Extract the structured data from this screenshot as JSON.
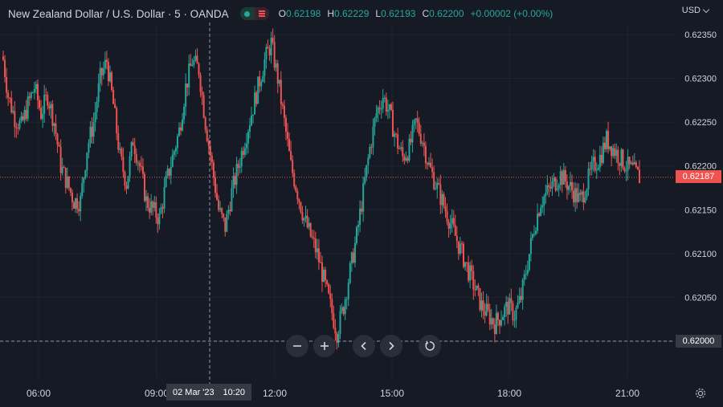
{
  "header": {
    "title": "New Zealand Dollar / U.S. Dollar · 5 · OANDA",
    "ohlc": [
      {
        "key": "O",
        "value": "0.62198"
      },
      {
        "key": "H",
        "value": "0.62229"
      },
      {
        "key": "L",
        "value": "0.62193"
      },
      {
        "key": "C",
        "value": "0.62200"
      }
    ],
    "change": "+0.00002 (+0.00%)"
  },
  "currency_label": "USD",
  "last_price_label": "0.62187",
  "crosshair_price_label": "0.62000",
  "crosshair_time": {
    "date": "02 Mar '23",
    "time": "10:20"
  },
  "colors": {
    "background": "#161a25",
    "up": "#26a69a",
    "down": "#ef5350",
    "grid": "#1f2331",
    "text": "#d1d4dc"
  },
  "icons": [
    "zoom-out-icon",
    "zoom-in-icon",
    "scroll-left-icon",
    "scroll-right-icon",
    "reset-icon",
    "settings-gear-icon",
    "chevron-down-icon"
  ],
  "chart_data": {
    "type": "candlestick",
    "symbol": "NZD/USD",
    "interval": "5",
    "ylim": [
      0.61975,
      0.62365
    ],
    "y_ticks": [
      "0.62350",
      "0.62300",
      "0.62250",
      "0.62200",
      "0.62150",
      "0.62100",
      "0.62050",
      "0.62000"
    ],
    "x_ticks": [
      "06:00",
      "09:00",
      "12:00",
      "15:00",
      "18:00",
      "21:00"
    ],
    "last_price": 0.62187,
    "crosshair_price": 0.62,
    "grid": true,
    "series": [
      {
        "values": [
          0.62335,
          0.6228,
          0.62255,
          0.62245,
          0.6227,
          0.6229,
          0.6226,
          0.6228,
          0.6225,
          0.622,
          0.6218,
          0.6216,
          0.6216,
          0.6222,
          0.6225,
          0.623,
          0.6232,
          0.6227,
          0.6221,
          0.6218,
          0.6223,
          0.622,
          0.6216,
          0.6215,
          0.6214,
          0.6218,
          0.6221,
          0.6224,
          0.6229,
          0.6232,
          0.6231,
          0.6225,
          0.622,
          0.6215,
          0.6213,
          0.6217,
          0.622,
          0.6223,
          0.6226,
          0.6229,
          0.6232,
          0.6234,
          0.623,
          0.6225,
          0.622,
          0.6217,
          0.6214,
          0.6212,
          0.621,
          0.6207,
          0.6204,
          0.6201,
          0.6204,
          0.6208,
          0.6212,
          0.6217,
          0.6222,
          0.6226,
          0.6228,
          0.6226,
          0.6223,
          0.6221,
          0.6222,
          0.6225,
          0.6223,
          0.622,
          0.6218,
          0.6216,
          0.6214,
          0.6212,
          0.621,
          0.6208,
          0.6206,
          0.6204,
          0.6203,
          0.6202,
          0.6203,
          0.6204,
          0.6203,
          0.6205,
          0.6209,
          0.6213,
          0.6216,
          0.6217,
          0.6218,
          0.6219,
          0.6218,
          0.6217,
          0.6216,
          0.6218,
          0.622,
          0.6221,
          0.6223,
          0.6222,
          0.6221,
          0.622,
          0.62195,
          0.62187
        ]
      }
    ]
  }
}
